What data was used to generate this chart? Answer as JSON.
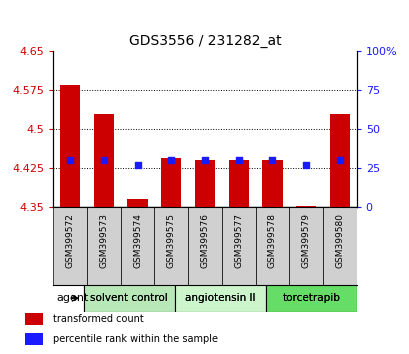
{
  "title": "GDS3556 / 231282_at",
  "samples": [
    "GSM399572",
    "GSM399573",
    "GSM399574",
    "GSM399575",
    "GSM399576",
    "GSM399577",
    "GSM399578",
    "GSM399579",
    "GSM399580"
  ],
  "bar_tops": [
    4.585,
    4.53,
    4.365,
    4.445,
    4.44,
    4.44,
    4.44,
    4.352,
    4.53
  ],
  "bar_bottom": 4.35,
  "percentile_values": [
    0.3,
    0.3,
    0.27,
    0.3,
    0.3,
    0.3,
    0.3,
    0.27,
    0.3
  ],
  "ylim_left": [
    4.35,
    4.65
  ],
  "ylim_right": [
    0,
    100
  ],
  "yticks_left": [
    4.35,
    4.425,
    4.5,
    4.575,
    4.65
  ],
  "yticks_right": [
    0,
    25,
    50,
    75,
    100
  ],
  "ytick_labels_left": [
    "4.35",
    "4.425",
    "4.5",
    "4.575",
    "4.65"
  ],
  "ytick_labels_right": [
    "0",
    "25",
    "50",
    "75",
    "100%"
  ],
  "bar_color": "#cc0000",
  "percentile_color": "#1a1aff",
  "agent_groups": [
    {
      "label": "solvent control",
      "start": 0,
      "end": 3,
      "color": "#b8e8b8"
    },
    {
      "label": "angiotensin II",
      "start": 3,
      "end": 6,
      "color": "#ccf5cc"
    },
    {
      "label": "torcetrapib",
      "start": 6,
      "end": 9,
      "color": "#66dd66"
    }
  ],
  "legend_items": [
    {
      "color": "#cc0000",
      "label": "transformed count"
    },
    {
      "color": "#1a1aff",
      "label": "percentile rank within the sample"
    }
  ]
}
